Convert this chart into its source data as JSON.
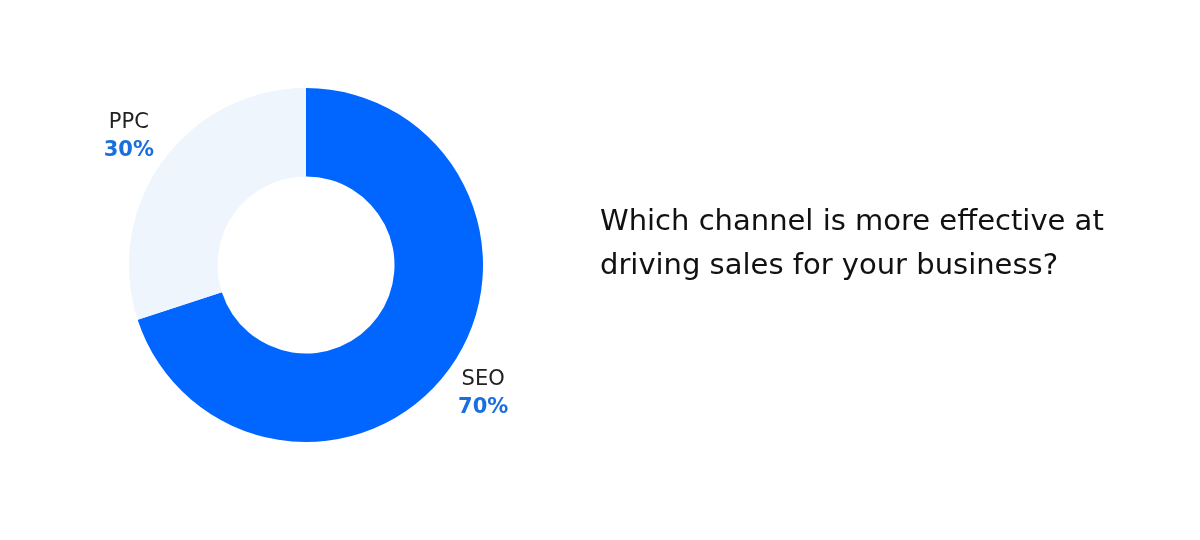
{
  "chart_data": {
    "type": "donut",
    "title": "Which channel is more effective at driving sales for your business?",
    "categories": [
      "SEO",
      "PPC"
    ],
    "values": [
      70,
      30
    ],
    "colors": [
      "#0066ff",
      "#eef5fd"
    ],
    "value_labels": [
      "70%",
      "30%"
    ],
    "legend": false
  }
}
